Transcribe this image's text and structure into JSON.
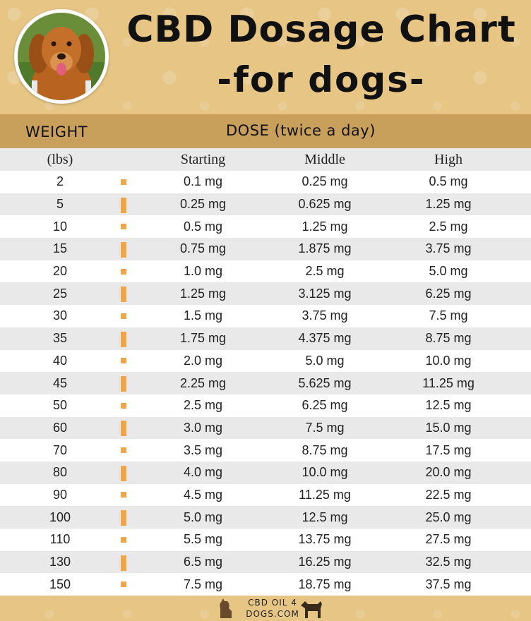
{
  "title": {
    "line1": "CBD Dosage Chart",
    "line2": "-for dogs-"
  },
  "header": {
    "weight_label": "WEIGHT",
    "dose_label": "DOSE (twice a day)"
  },
  "columns": {
    "weight": "(lbs)",
    "starting": "Starting",
    "middle": "Middle",
    "high": "High"
  },
  "rows": [
    {
      "w": "2",
      "s": "0.1 mg",
      "m": "0.25 mg",
      "h": "0.5 mg"
    },
    {
      "w": "5",
      "s": "0.25 mg",
      "m": "0.625 mg",
      "h": "1.25 mg"
    },
    {
      "w": "10",
      "s": "0.5 mg",
      "m": "1.25 mg",
      "h": "2.5 mg"
    },
    {
      "w": "15",
      "s": "0.75 mg",
      "m": "1.875 mg",
      "h": "3.75 mg"
    },
    {
      "w": "20",
      "s": "1.0 mg",
      "m": "2.5 mg",
      "h": "5.0 mg"
    },
    {
      "w": "25",
      "s": "1.25 mg",
      "m": "3.125 mg",
      "h": "6.25 mg"
    },
    {
      "w": "30",
      "s": "1.5 mg",
      "m": "3.75 mg",
      "h": "7.5 mg"
    },
    {
      "w": "35",
      "s": "1.75 mg",
      "m": "4.375 mg",
      "h": "8.75 mg"
    },
    {
      "w": "40",
      "s": "2.0 mg",
      "m": "5.0 mg",
      "h": "10.0 mg"
    },
    {
      "w": "45",
      "s": "2.25 mg",
      "m": "5.625 mg",
      "h": "11.25 mg"
    },
    {
      "w": "50",
      "s": "2.5 mg",
      "m": "6.25 mg",
      "h": "12.5 mg"
    },
    {
      "w": "60",
      "s": "3.0 mg",
      "m": "7.5 mg",
      "h": "15.0 mg"
    },
    {
      "w": "70",
      "s": "3.5 mg",
      "m": "8.75 mg",
      "h": "17.5 mg"
    },
    {
      "w": "80",
      "s": "4.0 mg",
      "m": "10.0 mg",
      "h": "20.0 mg"
    },
    {
      "w": "90",
      "s": "4.5 mg",
      "m": "11.25 mg",
      "h": "22.5 mg"
    },
    {
      "w": "100",
      "s": "5.0 mg",
      "m": "12.5 mg",
      "h": "25.0 mg"
    },
    {
      "w": "110",
      "s": "5.5 mg",
      "m": "13.75 mg",
      "h": "27.5 mg"
    },
    {
      "w": "130",
      "s": "6.5 mg",
      "m": "16.25 mg",
      "h": "32.5 mg"
    },
    {
      "w": "150",
      "s": "7.5 mg",
      "m": "18.75 mg",
      "h": "37.5 mg"
    }
  ],
  "footer": {
    "brand_line1": "CBD OIL 4",
    "brand_line2": "DOGS.COM"
  },
  "colors": {
    "background": "#e6c585",
    "header_band": "#c99f5c",
    "row_alt": "#e9e9ea",
    "bullet": "#f0a546"
  },
  "icons": [
    "dog-photo",
    "sitting-dog-icon",
    "standing-dog-icon"
  ]
}
